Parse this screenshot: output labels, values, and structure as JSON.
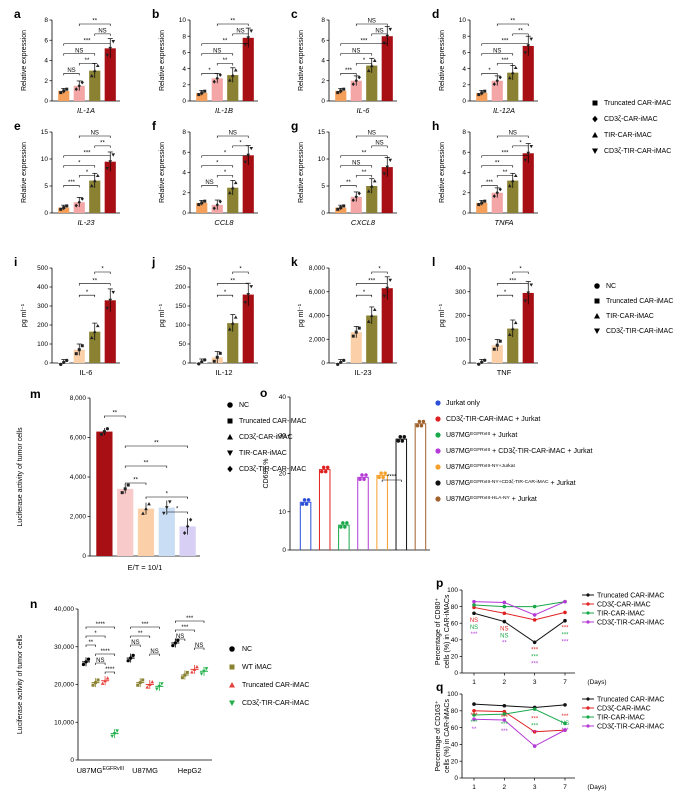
{
  "colors": {
    "orange": "#F5A05A",
    "pink": "#F4A6A6",
    "olive": "#8A8232",
    "darkred": "#A80F14",
    "ltorange": "#FBD0A8",
    "blue": "#2D4FD8",
    "lavender": "#D8CFF5",
    "dot": "#222222"
  },
  "legend_top": [
    "Truncated CAR-iMAC",
    "CD3ζ-CAR-iMAC",
    "TIR-CAR-iMAC",
    "CD3ζ-TIR-CAR-iMAC"
  ],
  "legend_il": [
    "NC",
    "Truncated CAR-iMAC",
    "TIR-CAR-iMAC",
    "CD3ζ-TIR-CAR-iMAC"
  ],
  "chart_data": [
    {
      "id": "a",
      "type": "bar",
      "panel_label": "a",
      "xlabel": "IL-1A",
      "ylabel": "Relative expression",
      "ylim": [
        0,
        8
      ],
      "yticks": [
        "0",
        "2",
        "4",
        "6",
        "8"
      ],
      "values": [
        1,
        1.5,
        3,
        5.2
      ],
      "signif": [
        "NS",
        "**",
        "NS",
        "***",
        "NS",
        "**"
      ]
    },
    {
      "id": "b",
      "type": "bar",
      "panel_label": "b",
      "xlabel": "IL-1B",
      "ylabel": "Relative expression",
      "ylim": [
        0,
        10
      ],
      "yticks": [
        "0",
        "2",
        "4",
        "6",
        "8",
        "10"
      ],
      "values": [
        1,
        2.8,
        3.2,
        7.8
      ],
      "signif": [
        "*",
        "**",
        "NS",
        "**",
        "NS",
        "**"
      ]
    },
    {
      "id": "c",
      "type": "bar",
      "panel_label": "c",
      "xlabel": "IL-6",
      "ylabel": "Relative expression",
      "ylim": [
        0,
        8
      ],
      "yticks": [
        "0",
        "2",
        "4",
        "6",
        "8"
      ],
      "values": [
        1,
        2,
        3.5,
        6.4
      ],
      "signif": [
        "***",
        "*",
        "NS",
        "***",
        "NS",
        "NS"
      ]
    },
    {
      "id": "d",
      "type": "bar",
      "panel_label": "d",
      "xlabel": "IL-12A",
      "ylabel": "Relative expression",
      "ylim": [
        0,
        10
      ],
      "yticks": [
        "0",
        "2",
        "4",
        "6",
        "8",
        "10"
      ],
      "values": [
        1,
        2.5,
        3.5,
        6.8
      ],
      "signif": [
        "*",
        "***",
        "NS",
        "***",
        "**",
        "**"
      ]
    },
    {
      "id": "e",
      "type": "bar",
      "panel_label": "e",
      "xlabel": "IL-23",
      "ylabel": "Relative expression",
      "ylim": [
        0,
        15
      ],
      "yticks": [
        "0",
        "5",
        "10",
        "15"
      ],
      "values": [
        1,
        2,
        6,
        9.5
      ],
      "signif": [
        "***",
        "*",
        "*",
        "***",
        "**",
        "NS"
      ]
    },
    {
      "id": "f",
      "type": "bar",
      "panel_label": "f",
      "xlabel": "CCL8",
      "ylabel": "Relative expression",
      "ylim": [
        0,
        8
      ],
      "yticks": [
        "0",
        "2",
        "4",
        "6",
        "8"
      ],
      "values": [
        1,
        0.8,
        2.5,
        5.7
      ],
      "signif": [
        "NS",
        "*",
        "*",
        "*",
        "*",
        "NS"
      ]
    },
    {
      "id": "g",
      "type": "bar",
      "panel_label": "g",
      "xlabel": "CXCL8",
      "ylabel": "Relative expression",
      "ylim": [
        0,
        15
      ],
      "yticks": [
        "0",
        "5",
        "10",
        "15"
      ],
      "values": [
        1,
        3,
        5,
        8.5
      ],
      "signif": [
        "**",
        "**",
        "NS",
        "**",
        "NS",
        "NS"
      ]
    },
    {
      "id": "h",
      "type": "bar",
      "panel_label": "h",
      "xlabel": "TNFA",
      "ylabel": "Relative expression",
      "ylim": [
        0,
        8
      ],
      "yticks": [
        "0",
        "2",
        "4",
        "6",
        "8"
      ],
      "values": [
        1,
        2,
        3.2,
        5.9
      ],
      "signif": [
        "***",
        "**",
        "**",
        "***",
        "*",
        "NS"
      ]
    },
    {
      "id": "i",
      "type": "bar",
      "panel_label": "i",
      "xlabel": "IL-6",
      "ylabel": "pg ml⁻¹",
      "ylim": [
        0,
        500
      ],
      "yticks": [
        "0",
        "100",
        "200",
        "300",
        "400",
        "500"
      ],
      "values": [
        3,
        70,
        165,
        330
      ],
      "signif": [
        "*",
        "**",
        "*"
      ]
    },
    {
      "id": "j",
      "type": "bar",
      "panel_label": "j",
      "xlabel": "IL-12",
      "ylabel": "pg ml⁻¹",
      "ylim": [
        0,
        250
      ],
      "yticks": [
        "0",
        "50",
        "100",
        "150",
        "200",
        "250"
      ],
      "values": [
        3,
        15,
        105,
        180
      ],
      "signif": [
        "*",
        "**",
        "*"
      ]
    },
    {
      "id": "k",
      "type": "bar",
      "panel_label": "k",
      "xlabel": "IL-23",
      "ylabel": "pg ml⁻¹",
      "ylim": [
        0,
        8000
      ],
      "yticks": [
        "0",
        "2,000",
        "4,000",
        "6,000",
        "8,000"
      ],
      "values": [
        50,
        2600,
        4000,
        6300
      ],
      "signif": [
        "*",
        "***",
        "*"
      ]
    },
    {
      "id": "l",
      "type": "bar",
      "panel_label": "l",
      "xlabel": "TNF",
      "ylabel": "pg ml⁻¹",
      "ylim": [
        0,
        400
      ],
      "yticks": [
        "0",
        "100",
        "200",
        "300",
        "400"
      ],
      "values": [
        3,
        75,
        145,
        295
      ],
      "signif": [
        "*",
        "***",
        "*"
      ]
    },
    {
      "id": "m",
      "type": "bar",
      "panel_label": "m",
      "xlabel": "E/T = 10/1",
      "ylabel": "Luciferase activity of tumor cells",
      "ylim": [
        0,
        8000
      ],
      "yticks": [
        "0",
        "2,000",
        "4,000",
        "6,000",
        "8,000"
      ],
      "categories": [
        "NC",
        "Truncated CAR-iMAC",
        "CD3ζ-CAR-iMAC",
        "TIR-CAR-iMAC",
        "CD3ζ-TIR-CAR-iMAC"
      ],
      "values": [
        6300,
        3400,
        2400,
        2450,
        1500
      ],
      "signif": [
        "**",
        "**",
        "**",
        "**",
        "*",
        "*"
      ]
    },
    {
      "id": "n",
      "type": "bar",
      "panel_label": "n",
      "ylabel": "Luciferase activity of tumor cells",
      "ylim": [
        0,
        40000
      ],
      "yticks": [
        "0",
        "10,000",
        "20,000",
        "30,000",
        "40,000"
      ],
      "categories": [
        "U87MG^EGFRvIII",
        "U87MG",
        "HepG2"
      ],
      "legend": [
        "NC",
        "WT iMAC",
        "Truncated CAR-iMAC",
        "CD3ζ-TIR-CAR-iMAC"
      ],
      "series": [
        {
          "name": "NC",
          "values": [
            26000,
            27000,
            31000
          ]
        },
        {
          "name": "WT iMAC",
          "values": [
            20500,
            20500,
            22500
          ]
        },
        {
          "name": "Truncated CAR-iMAC",
          "values": [
            21000,
            20000,
            24000
          ]
        },
        {
          "name": "CD3ζ-TIR-CAR-iMAC",
          "values": [
            7000,
            19500,
            23500
          ]
        }
      ],
      "signif": [
        "****",
        "*",
        "**",
        "****",
        "NS",
        "****",
        "***",
        "**",
        "NS",
        "NS",
        "***",
        "***",
        "NS",
        "NS"
      ]
    },
    {
      "id": "o",
      "type": "bar",
      "panel_label": "o",
      "ylabel": "CD69^hi %",
      "ylim": [
        0,
        40
      ],
      "yticks": [
        "0",
        "10",
        "20",
        "30",
        "40"
      ],
      "categories": [
        "Jurkat only",
        "CD3ζ-TIR-CAR-iMAC + Jurkat",
        "U87MG^EGFRvIII + Jurkat",
        "U87MG^EGFRvIII + CD3ζ-TIR-CAR-iMAC + Jurkat",
        "U87MG^EGFRvIII-NY+Jurkat",
        "U87MG^EGFRvIII-NY+CD3ζ-TIR-CAR-iMAC + Jurkat",
        "U87MG^EGFRvIII-HLA-NY + Jurkat"
      ],
      "values": [
        12.5,
        21,
        6.5,
        19,
        19.5,
        29,
        33
      ],
      "signif": [
        "****"
      ]
    },
    {
      "id": "p",
      "type": "line",
      "panel_label": "p",
      "xlabel": "(Days)",
      "ylabel": "Percentage of CD80⁺ cells (%) in CAR-iMACs",
      "ylim": [
        0,
        100
      ],
      "yticks": [
        "0",
        "20",
        "40",
        "60",
        "80",
        "100"
      ],
      "x": [
        "1",
        "2",
        "3",
        "7"
      ],
      "series": [
        {
          "name": "Truncated CAR-iMAC",
          "values": [
            72,
            62,
            37,
            63
          ]
        },
        {
          "name": "CD3ζ-CAR-iMAC",
          "values": [
            79,
            72,
            64,
            73
          ]
        },
        {
          "name": "TIR-CAR-iMAC",
          "values": [
            82,
            80,
            80,
            86
          ]
        },
        {
          "name": "CD3ζ-TIR-CAR-iMAC",
          "values": [
            86,
            85,
            70,
            86
          ]
        }
      ],
      "signif": [
        "NS",
        "NS",
        "***",
        "NS",
        "NS",
        "**",
        "***",
        "***",
        "***",
        "***",
        "***",
        "***"
      ]
    },
    {
      "id": "q",
      "type": "line",
      "panel_label": "q",
      "xlabel": "(Days)",
      "ylabel": "Percentage of CD163⁺ cells (%) in CAR-iMACs",
      "ylim": [
        0,
        100
      ],
      "yticks": [
        "0",
        "20",
        "40",
        "60",
        "80",
        "100"
      ],
      "x": [
        "1",
        "2",
        "3",
        "7"
      ],
      "series": [
        {
          "name": "Truncated CAR-iMAC",
          "values": [
            88,
            86,
            84,
            87
          ]
        },
        {
          "name": "CD3ζ-CAR-iMAC",
          "values": [
            80,
            79,
            55,
            57
          ]
        },
        {
          "name": "TIR-CAR-iMAC",
          "values": [
            75,
            76,
            82,
            65
          ]
        },
        {
          "name": "CD3ζ-TIR-CAR-iMAC",
          "values": [
            70,
            69,
            38,
            57
          ]
        }
      ],
      "signif": [
        "***",
        "***",
        "**",
        "***",
        "***",
        "***",
        "***",
        "***",
        "***",
        "***",
        "NS",
        "***",
        "***"
      ]
    }
  ]
}
